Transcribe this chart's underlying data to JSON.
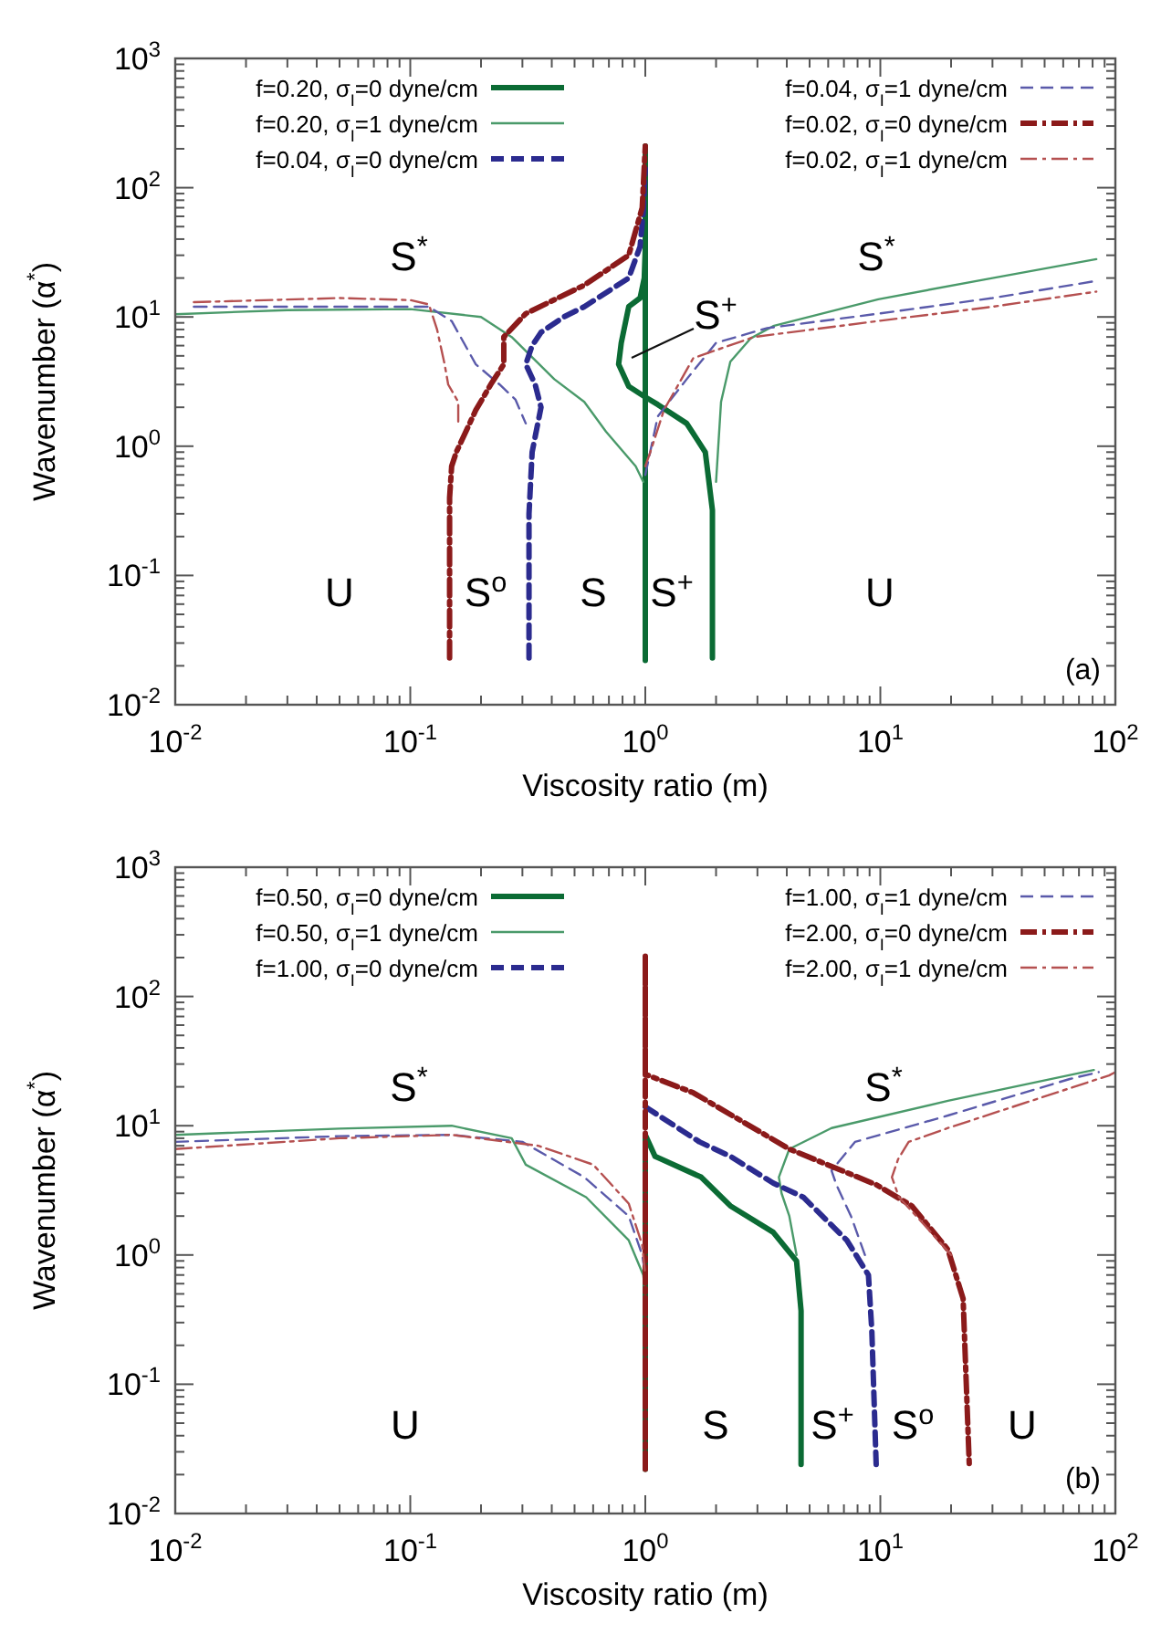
{
  "chart_data": [
    {
      "type": "line",
      "xlabel": "Viscosity ratio (m)",
      "ylabel": "Wavenumber (α$^{*}$)",
      "log": "xy",
      "xlim": [
        0.01,
        100
      ],
      "ylim": [
        0.01,
        1000
      ],
      "xticks": [
        {
          "value": 0.01,
          "label": "10$^{-2}$"
        },
        {
          "value": 0.1,
          "label": "10$^{-1}$"
        },
        {
          "value": 1,
          "label": "10$^{0}$"
        },
        {
          "value": 10,
          "label": "10$^{1}$"
        },
        {
          "value": 100,
          "label": "10$^{2}$"
        }
      ],
      "yticks": [
        {
          "value": 0.01,
          "label": "10$^{-2}$"
        },
        {
          "value": 0.1,
          "label": "10$^{-1}$"
        },
        {
          "value": 1,
          "label": "10$^{0}$"
        },
        {
          "value": 10,
          "label": "10$^{1}$"
        },
        {
          "value": 100,
          "label": "10$^{2}$"
        },
        {
          "value": 1000,
          "label": "10$^{3}$"
        }
      ],
      "legend": "top",
      "annotations": [
        "S$^{*}$",
        "S$^{*}$",
        "S$^{+}$",
        "U",
        "S$^{o}$",
        "S",
        "S$^{+}$",
        "U",
        "(a)"
      ],
      "series": [
        {
          "name": "f=0.20, σ$_{I}$=0 dyne/cm",
          "color": "#0b6b34",
          "line_style": "solid",
          "x": [
            1,
            1,
            1,
            0.99,
            0.95,
            0.85,
            0.79,
            0.77,
            0.85,
            1.0,
            1.13,
            1.5,
            1.8,
            1.93,
            1.93,
            1.93
          ],
          "values": [
            0.022,
            210,
            34,
            20,
            14,
            12,
            6.3,
            4.3,
            2.9,
            2.4,
            2.1,
            1.5,
            0.9,
            0.32,
            0.1,
            0.023
          ]
        },
        {
          "name": "f=0.20, σ$_{I}$=1 dyne/cm",
          "color": "#4a9a6a",
          "line_style": "solid",
          "x": [
            0.01,
            0.03,
            0.1,
            0.2,
            0.27,
            0.41,
            0.55,
            0.68,
            0.91,
            0.98,
            null,
            2.0,
            2.1,
            2.3,
            2.8,
            3.5,
            9.8,
            30,
            83
          ],
          "values": [
            10.5,
            11.3,
            11.5,
            10,
            7,
            3.3,
            2.2,
            1.3,
            0.7,
            0.53,
            null,
            0.53,
            2.2,
            4.5,
            6.8,
            8.5,
            13.7,
            20,
            28
          ]
        },
        {
          "name": "f=0.04, σ$_{I}$=0 dyne/cm",
          "color": "#2b2b8f",
          "line_style": "dashed",
          "x": [
            0.32,
            0.32,
            0.33,
            0.36,
            0.34,
            0.31,
            0.33,
            0.36,
            0.45,
            0.55,
            0.85,
            0.95,
            0.98,
            1.0
          ],
          "values": [
            0.023,
            0.3,
            0.9,
            2,
            3,
            4.3,
            6,
            7.6,
            10,
            12,
            20,
            35,
            65,
            140
          ]
        },
        {
          "name": "f=0.04, σ$_{I}$=1 dyne/cm",
          "color": "#5a5aaa",
          "line_style": "dashed",
          "x": [
            0.012,
            0.05,
            0.12,
            0.15,
            0.19,
            0.24,
            0.28,
            0.31,
            null,
            1.0,
            1.13,
            1.5,
            2.0,
            3.3,
            9.8,
            30,
            83
          ],
          "values": [
            12,
            12,
            12,
            9.3,
            4.3,
            3,
            2.3,
            1.5,
            null,
            0.6,
            1.7,
            3.3,
            6.3,
            8.2,
            10.6,
            14,
            19
          ]
        },
        {
          "name": "f=0.02, σ$_{I}$=0 dyne/cm",
          "color": "#8b1a1a",
          "line_style": "dashdot",
          "x": [
            0.147,
            0.147,
            0.15,
            0.157,
            0.19,
            0.22,
            0.25,
            0.25,
            0.31,
            0.55,
            0.85,
            0.97,
            1.0
          ],
          "values": [
            0.023,
            0.4,
            0.7,
            0.9,
            1.9,
            3,
            4.3,
            7,
            10.6,
            17.6,
            30,
            70,
            210
          ]
        },
        {
          "name": "f=0.02, σ$_{I}$=1 dyne/cm",
          "color": "#b55050",
          "line_style": "dashdot",
          "x": [
            0.012,
            0.05,
            0.1,
            0.12,
            0.13,
            0.14,
            0.145,
            0.16,
            0.16,
            null,
            1.0,
            1.05,
            1.2,
            1.6,
            2.9,
            9.8,
            30,
            83
          ],
          "values": [
            13,
            14,
            13.5,
            12.5,
            8,
            4.3,
            3,
            2.2,
            1.5,
            null,
            0.7,
            0.9,
            1.9,
            4.8,
            7,
            9.3,
            12,
            15.7
          ]
        }
      ]
    },
    {
      "type": "line",
      "xlabel": "Viscosity ratio (m)",
      "ylabel": "Wavenumber (α$^{*}$)",
      "log": "xy",
      "xlim": [
        0.01,
        100
      ],
      "ylim": [
        0.01,
        1000
      ],
      "xticks": [
        {
          "value": 0.01,
          "label": "10$^{-2}$"
        },
        {
          "value": 0.1,
          "label": "10$^{-1}$"
        },
        {
          "value": 1,
          "label": "10$^{0}$"
        },
        {
          "value": 10,
          "label": "10$^{1}$"
        },
        {
          "value": 100,
          "label": "10$^{2}$"
        }
      ],
      "yticks": [
        {
          "value": 0.01,
          "label": "10$^{-2}$"
        },
        {
          "value": 0.1,
          "label": "10$^{-1}$"
        },
        {
          "value": 1,
          "label": "10$^{0}$"
        },
        {
          "value": 10,
          "label": "10$^{1}$"
        },
        {
          "value": 100,
          "label": "10$^{2}$"
        },
        {
          "value": 1000,
          "label": "10$^{3}$"
        }
      ],
      "legend": "top",
      "annotations": [
        "S$^{*}$",
        "S$^{*}$",
        "U",
        "S",
        "S$^{+}$",
        "S$^{o}$",
        "U",
        "(b)"
      ],
      "series": [
        {
          "name": "f=0.50, σ$_{I}$=0 dyne/cm",
          "color": "#0b6b34",
          "line_style": "solid",
          "x": [
            1,
            1,
            1.1,
            1.73,
            2.3,
            3.5,
            4.4,
            4.6,
            4.6
          ],
          "values": [
            0.022,
            8.5,
            5.8,
            4,
            2.4,
            1.5,
            0.9,
            0.37,
            0.024
          ]
        },
        {
          "name": "f=0.50, σ$_{I}$=1 dyne/cm",
          "color": "#4a9a6a",
          "line_style": "solid",
          "x": [
            0.01,
            0.05,
            0.15,
            0.27,
            0.31,
            0.56,
            0.85,
            0.98,
            1.0,
            null,
            4.4,
            4.1,
            3.8,
            3.7,
            4.1,
            6.2,
            19.4,
            81
          ],
          "values": [
            8.5,
            9.5,
            10,
            8,
            5,
            2.8,
            1.3,
            0.7,
            0.5,
            null,
            1.0,
            2,
            3,
            4,
            6.6,
            9.6,
            15.6,
            27
          ]
        },
        {
          "name": "f=1.00, σ$_{I}$=0 dyne/cm",
          "color": "#2b2b8f",
          "line_style": "dashed",
          "x": [
            1,
            1.7,
            2.3,
            3.5,
            4.7,
            7.2,
            8.9,
            9.2,
            9.6
          ],
          "values": [
            14,
            7.5,
            5.8,
            3.6,
            2.8,
            1.3,
            0.7,
            0.26,
            0.024
          ]
        },
        {
          "name": "f=1.00, σ$_{I}$=1 dyne/cm",
          "color": "#5a5aaa",
          "line_style": "dashed",
          "x": [
            0.01,
            0.05,
            0.15,
            0.3,
            0.55,
            0.85,
            0.97,
            1.0,
            null,
            8.6,
            7.5,
            6.5,
            6.2,
            7.8,
            19.4,
            64,
            85
          ],
          "values": [
            7.5,
            8.3,
            8.5,
            7.5,
            4,
            2,
            1,
            0.7,
            null,
            1.0,
            2,
            3.5,
            4.5,
            7.5,
            12,
            23,
            26
          ]
        },
        {
          "name": "f=2.00, σ$_{I}$=0 dyne/cm",
          "color": "#8b1a1a",
          "line_style": "dashdot",
          "x": [
            1,
            1,
            1,
            1.6,
            4.1,
            9.6,
            13.6,
            19.4,
            22.5,
            23.9
          ],
          "values": [
            0.022,
            210,
            25,
            18,
            6.6,
            3.5,
            2.4,
            1.1,
            0.46,
            0.024
          ]
        },
        {
          "name": "f=2.00, σ$_{I}$=1 dyne/cm",
          "color": "#b55050",
          "line_style": "dashdot",
          "x": [
            0.01,
            0.05,
            0.15,
            0.35,
            0.6,
            0.85,
            0.97,
            1.0,
            null,
            20,
            15,
            12,
            11.2,
            11.9,
            13.2,
            19.4,
            94,
            100
          ],
          "values": [
            6.6,
            8,
            8.5,
            7,
            5,
            2.5,
            1.2,
            0.7,
            null,
            1.0,
            1.8,
            2.8,
            4,
            5.5,
            7.5,
            9.6,
            24.5,
            26
          ]
        }
      ]
    }
  ]
}
